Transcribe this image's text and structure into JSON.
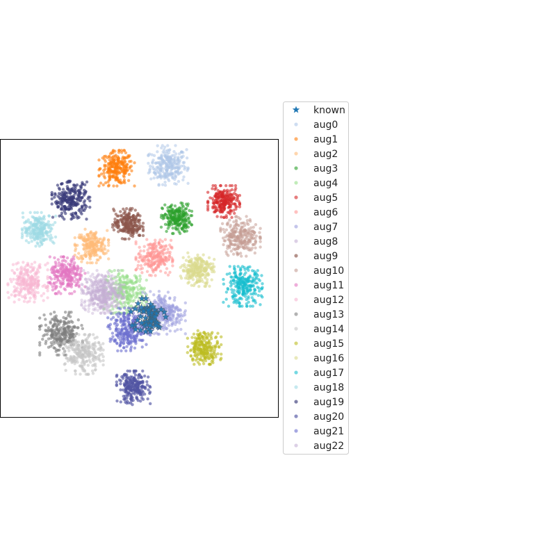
{
  "chart_data": {
    "type": "scatter",
    "title": "",
    "xlabel": "",
    "ylabel": "",
    "xlim": [
      -100,
      100
    ],
    "ylim": [
      -100,
      100
    ],
    "axis_ticks": false,
    "grid": false,
    "legend_position": "outside-right",
    "series": [
      {
        "name": "known",
        "marker": "star",
        "color": "#1f77b4",
        "center": [
          6,
          -28
        ],
        "spread": 6,
        "n": 70,
        "alpha": 0.9
      },
      {
        "name": "aug0",
        "marker": "dot",
        "color": "#aec7e8",
        "center": [
          21,
          81
        ],
        "spread": 6.5,
        "n": 260,
        "alpha": 0.55
      },
      {
        "name": "aug1",
        "marker": "dot",
        "color": "#ff7f0e",
        "center": [
          -16,
          79
        ],
        "spread": 5.8,
        "n": 240,
        "alpha": 0.6
      },
      {
        "name": "aug2",
        "marker": "dot",
        "color": "#ffbb78",
        "center": [
          -34,
          23
        ],
        "spread": 5.5,
        "n": 220,
        "alpha": 0.6
      },
      {
        "name": "aug3",
        "marker": "dot",
        "color": "#2ca02c",
        "center": [
          27,
          43
        ],
        "spread": 5,
        "n": 220,
        "alpha": 0.6
      },
      {
        "name": "aug4",
        "marker": "dot",
        "color": "#98df8a",
        "center": [
          -10,
          -10
        ],
        "spread": 7,
        "n": 260,
        "alpha": 0.55
      },
      {
        "name": "aug5",
        "marker": "dot",
        "color": "#d62728",
        "center": [
          61,
          55
        ],
        "spread": 5.2,
        "n": 230,
        "alpha": 0.6
      },
      {
        "name": "aug6",
        "marker": "dot",
        "color": "#ff9896",
        "center": [
          11,
          15
        ],
        "spread": 6,
        "n": 240,
        "alpha": 0.55
      },
      {
        "name": "aug7",
        "marker": "dot",
        "color": "#9c9ede",
        "center": [
          18,
          -25
        ],
        "spread": 7,
        "n": 280,
        "alpha": 0.55
      },
      {
        "name": "aug8",
        "marker": "dot",
        "color": "#c5b0d5",
        "center": [
          -26,
          -10
        ],
        "spread": 7,
        "n": 240,
        "alpha": 0.45
      },
      {
        "name": "aug9",
        "marker": "dot",
        "color": "#8c564b",
        "center": [
          -8,
          39
        ],
        "spread": 5,
        "n": 220,
        "alpha": 0.65
      },
      {
        "name": "aug10",
        "marker": "dot",
        "color": "#c49c94",
        "center": [
          73,
          30
        ],
        "spread": 6.5,
        "n": 250,
        "alpha": 0.55
      },
      {
        "name": "aug11",
        "marker": "dot",
        "color": "#e377c2",
        "center": [
          -52,
          2
        ],
        "spread": 6,
        "n": 230,
        "alpha": 0.6
      },
      {
        "name": "aug12",
        "marker": "dot",
        "color": "#f7b6d2",
        "center": [
          -80,
          -3
        ],
        "spread": 6.5,
        "n": 240,
        "alpha": 0.55
      },
      {
        "name": "aug13",
        "marker": "dot",
        "color": "#7f7f7f",
        "center": [
          -56,
          -40
        ],
        "spread": 7,
        "n": 250,
        "alpha": 0.6
      },
      {
        "name": "aug14",
        "marker": "dot",
        "color": "#c7c7c7",
        "center": [
          -40,
          -55
        ],
        "spread": 6.5,
        "n": 240,
        "alpha": 0.6
      },
      {
        "name": "aug15",
        "marker": "dot",
        "color": "#bcbd22",
        "center": [
          47,
          -50
        ],
        "spread": 5.5,
        "n": 230,
        "alpha": 0.6
      },
      {
        "name": "aug16",
        "marker": "dot",
        "color": "#dbdb8d",
        "center": [
          42,
          6
        ],
        "spread": 5.5,
        "n": 230,
        "alpha": 0.6
      },
      {
        "name": "aug17",
        "marker": "dot",
        "color": "#17becf",
        "center": [
          75,
          -6
        ],
        "spread": 6.5,
        "n": 240,
        "alpha": 0.6
      },
      {
        "name": "aug18",
        "marker": "dot",
        "color": "#9edae5",
        "center": [
          -72,
          35
        ],
        "spread": 5.5,
        "n": 230,
        "alpha": 0.6
      },
      {
        "name": "aug19",
        "marker": "dot",
        "color": "#393b79",
        "center": [
          -49,
          56
        ],
        "spread": 6.2,
        "n": 240,
        "alpha": 0.65
      },
      {
        "name": "aug20",
        "marker": "dot",
        "color": "#5254a3",
        "center": [
          -4,
          -79
        ],
        "spread": 5.5,
        "n": 230,
        "alpha": 0.65
      },
      {
        "name": "aug21",
        "marker": "dot",
        "color": "#6b6ecf",
        "center": [
          -7,
          -37
        ],
        "spread": 7,
        "n": 270,
        "alpha": 0.6
      },
      {
        "name": "aug22",
        "marker": "dot",
        "color": "#c5b0d5",
        "center": [
          -28,
          -12
        ],
        "spread": 6,
        "n": 200,
        "alpha": 0.4
      }
    ]
  }
}
